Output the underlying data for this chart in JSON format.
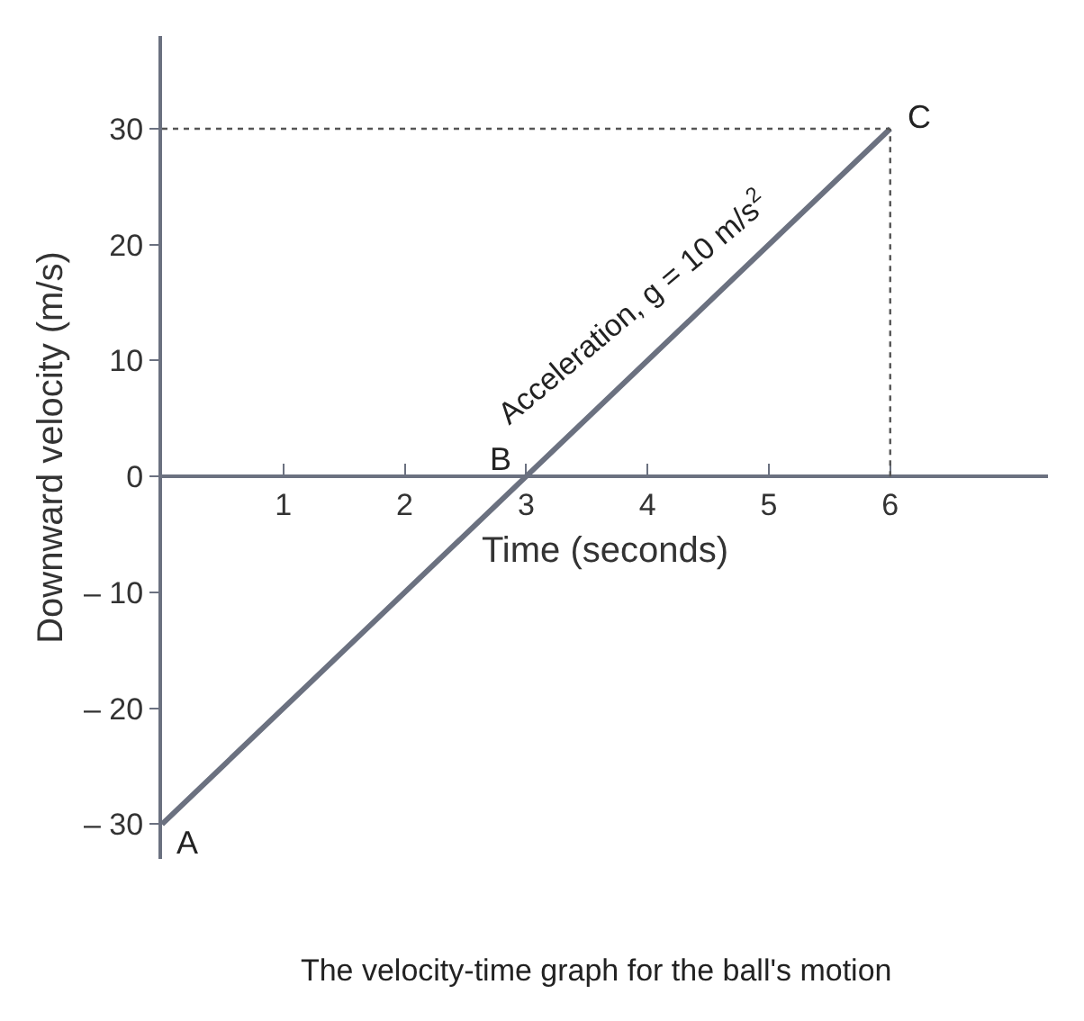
{
  "chart_data": {
    "type": "line",
    "title": "The velocity-time graph for the ball's motion",
    "xlabel": "Time (seconds)",
    "ylabel": "Downward velocity (m/s)",
    "x": [
      0,
      3,
      6
    ],
    "series": [
      {
        "color": "#6b7180",
        "values": [
          -30,
          0,
          30
        ]
      }
    ],
    "xlim": [
      0,
      7.3
    ],
    "ylim": [
      -33,
      38
    ],
    "xticks": [
      1,
      2,
      3,
      4,
      5,
      6
    ],
    "yticks": [
      {
        "value": -30,
        "label": "– 30"
      },
      {
        "value": -20,
        "label": "– 20"
      },
      {
        "value": -10,
        "label": "– 10"
      },
      0,
      10,
      20,
      30
    ],
    "ref_lines": [
      {
        "axis": "y",
        "value": 30,
        "label": null,
        "color": "#555555",
        "line_style": "dotted"
      },
      {
        "axis": "x",
        "value": 6,
        "label": null,
        "color": "#555555",
        "line_style": "dotted"
      }
    ],
    "annotations": [
      {
        "text": "A",
        "x": 0,
        "y": -30
      },
      {
        "text": "B",
        "x": 3,
        "y": 0
      },
      {
        "text": "C",
        "x": 6,
        "y": 30
      },
      "Acceleration, g = 10 m/s$^{2}$"
    ],
    "legend": false,
    "marker": "none",
    "line_style": "solid"
  }
}
